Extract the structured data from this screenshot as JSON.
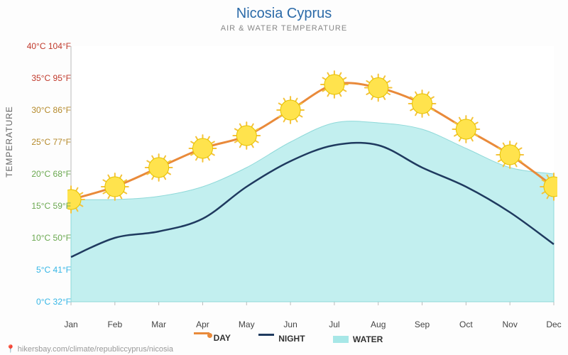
{
  "title": "Nicosia Cyprus",
  "subtitle": "AIR & WATER TEMPERATURE",
  "ylabel": "TEMPERATURE",
  "source_url": "hikersbay.com/climate/republiccyprus/nicosia",
  "chart": {
    "type": "line+area",
    "x_labels": [
      "Jan",
      "Feb",
      "Mar",
      "Apr",
      "May",
      "Jun",
      "Jul",
      "Aug",
      "Sep",
      "Oct",
      "Nov",
      "Dec"
    ],
    "celsius_ticks": [
      0,
      5,
      10,
      15,
      20,
      25,
      30,
      35,
      40
    ],
    "fahrenheit_ticks": [
      32,
      41,
      50,
      59,
      68,
      77,
      86,
      95,
      104
    ],
    "ymin_c": 0,
    "ymax_c": 40,
    "series": {
      "day": {
        "values_c": [
          16,
          18,
          21,
          24,
          26,
          30,
          34,
          33.5,
          31,
          27,
          23,
          18
        ],
        "color": "#e98a3a",
        "line_width": 3,
        "marker": "sun"
      },
      "night": {
        "values_c": [
          7,
          10,
          11,
          13,
          18,
          22,
          24.5,
          24.5,
          21,
          18,
          14,
          9
        ],
        "color": "#1f3a5f",
        "line_width": 2.5
      },
      "water": {
        "values_c": [
          16,
          16,
          16.5,
          18,
          21,
          25,
          28,
          28,
          27,
          24,
          21,
          20
        ],
        "fill": "#b7ecec",
        "fill_opacity": 0.85,
        "stroke": "#8fd9d9"
      }
    },
    "axis_color": "#bbb",
    "grid_color": "#e8e8e8",
    "tick_colors": {
      "0": "#35b6e6",
      "5": "#35b6e6",
      "10": "#6aa84f",
      "15": "#6aa84f",
      "20": "#6aa84f",
      "25": "#b58a2b",
      "30": "#b58a2b",
      "35": "#c0392b",
      "40": "#c0392b"
    },
    "plot_bg": "#ffffff",
    "marker_sun": {
      "body": "#ffe34d",
      "stroke": "#e6c200",
      "rays": "#f5c33b",
      "radius": 14
    }
  },
  "legend": {
    "day": "DAY",
    "night": "NIGHT",
    "water": "WATER",
    "day_color": "#e98a3a",
    "night_color": "#1f3a5f",
    "water_color": "#a7e7e7"
  }
}
